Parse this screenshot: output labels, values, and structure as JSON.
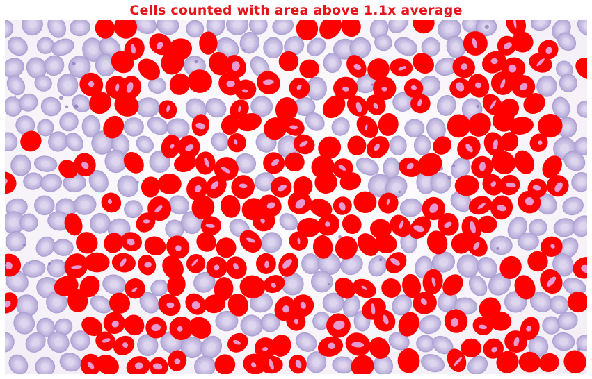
{
  "figure": {
    "title": "Cells counted with area above 1.1x average"
  },
  "colors": {
    "title": "#e8141b",
    "highlight": "#ff0000",
    "highlight_inner": "#e79ad2",
    "cell_fill": "#c7bde2",
    "cell_edge": "#a99fd1",
    "cell_center": "#ddd6ef",
    "background": "#f7f3f8"
  }
}
